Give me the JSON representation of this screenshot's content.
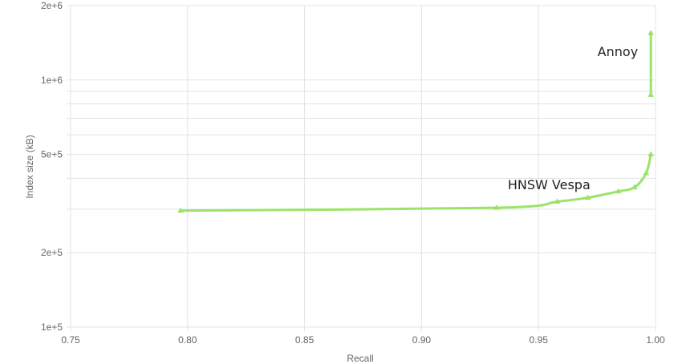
{
  "chart_data": {
    "type": "line",
    "title": "",
    "xlabel": "Recall",
    "ylabel": "Index size (kB)",
    "xlim": [
      0.75,
      1.0
    ],
    "ylim": [
      100000,
      2000000
    ],
    "yscale": "log",
    "grid": true,
    "legend": "none",
    "x_ticks": [
      "0.75",
      "0.80",
      "0.85",
      "0.90",
      "0.95",
      "1.00"
    ],
    "y_ticks": [
      {
        "value": 2000000,
        "label": "2e+6"
      },
      {
        "value": 1000000,
        "label": "1e+6"
      },
      {
        "value": 500000,
        "label": "5e+5"
      },
      {
        "value": 200000,
        "label": "2e+5"
      },
      {
        "value": 100000,
        "label": "1e+5"
      }
    ],
    "series": [
      {
        "name": "HNSW Vespa",
        "color": "#9be36a",
        "x": [
          0.797,
          0.932,
          0.958,
          0.971,
          0.984,
          0.991,
          0.996,
          0.998
        ],
        "y": [
          296000,
          304000,
          322000,
          334000,
          354000,
          368000,
          420000,
          500000
        ]
      },
      {
        "name": "Annoy",
        "color": "#9be36a",
        "x": [
          0.998,
          0.998
        ],
        "y": [
          1550000,
          870000
        ]
      }
    ]
  }
}
